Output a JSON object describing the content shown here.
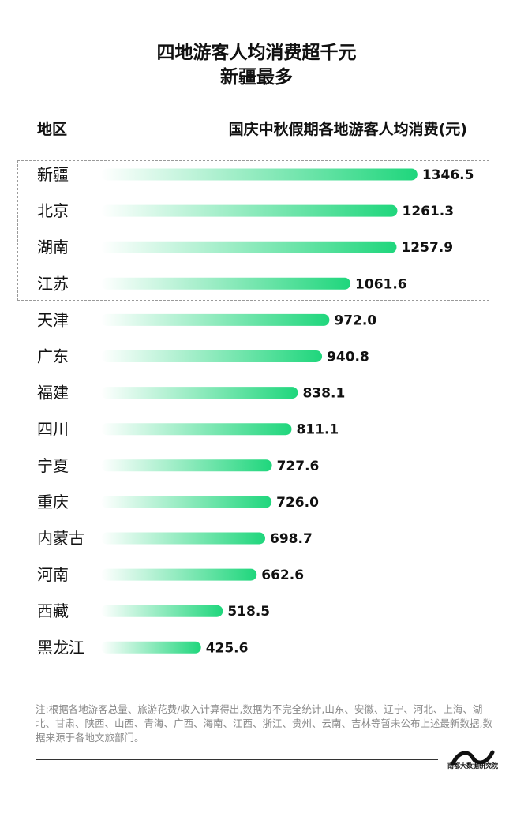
{
  "title": {
    "line1": "四地游客人均消费超千元",
    "line2": "新疆最多"
  },
  "headers": {
    "region": "地区",
    "value": "国庆中秋假期各地游客人均消费(元)"
  },
  "chart_data": {
    "type": "bar",
    "orientation": "horizontal",
    "categories": [
      "新疆",
      "北京",
      "湖南",
      "江苏",
      "天津",
      "广东",
      "福建",
      "四川",
      "宁夏",
      "重庆",
      "内蒙古",
      "河南",
      "西藏",
      "黑龙江"
    ],
    "values": [
      1346.5,
      1261.3,
      1257.9,
      1061.6,
      972.0,
      940.8,
      838.1,
      811.1,
      727.6,
      726.0,
      698.7,
      662.6,
      518.5,
      425.6
    ],
    "value_labels": [
      "1346.5",
      "1261.3",
      "1257.9",
      "1061.6",
      "972.0",
      "940.8",
      "838.1",
      "811.1",
      "727.6",
      "726.0",
      "698.7",
      "662.6",
      "518.5",
      "425.6"
    ],
    "highlighted": [
      "新疆",
      "北京",
      "湖南",
      "江苏"
    ],
    "bar_gradient": [
      "#ffffff",
      "#1fd67c"
    ]
  },
  "note": "注:根据各地游客总量、旅游花费/收入计算得出,数据为不完全统计,山东、安徽、辽宁、河北、上海、湖北、甘肃、陕西、山西、青海、广西、海南、江西、浙江、贵州、云南、吉林等暂未公布上述最新数据,数据来源于各地文旅部门。",
  "logo": {
    "icon": "wave-logo-icon",
    "text": "南都大数据研究院"
  }
}
